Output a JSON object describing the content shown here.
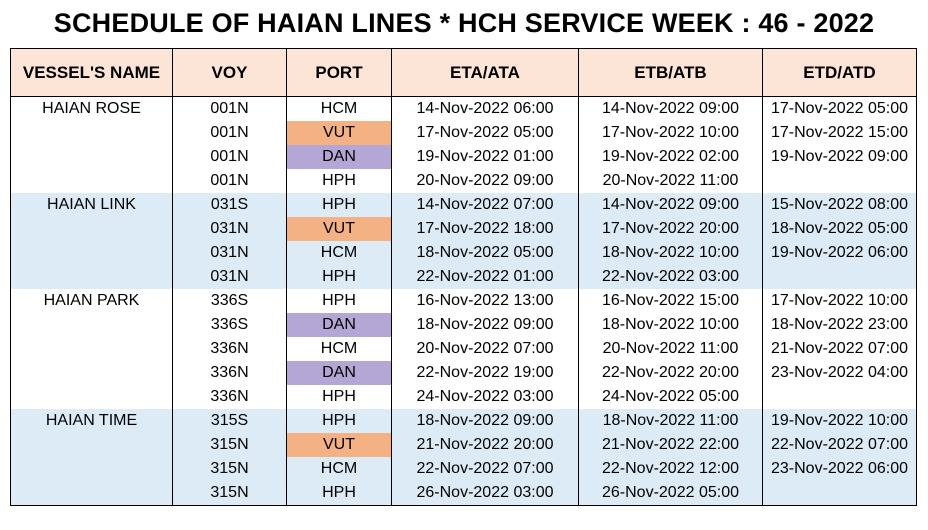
{
  "title": "SCHEDULE OF HAIAN LINES * HCH SERVICE WEEK : 46 - 2022",
  "headers": {
    "vessel": "VESSEL'S NAME",
    "voy": "VOY",
    "port": "PORT",
    "eta": "ETA/ATA",
    "etb": "ETB/ATB",
    "etd": "ETD/ATD"
  },
  "colors": {
    "header_bg": "#FCE4D6",
    "alt_row_bg": "#DDEBF7",
    "port_highlight_orange": "#F4B183",
    "port_highlight_purple": "#B4A7D6"
  },
  "rows": [
    {
      "vessel": "HAIAN ROSE",
      "voy": "001N",
      "port": "HCM",
      "eta": "14-Nov-2022 06:00",
      "etb": "14-Nov-2022 09:00",
      "etd": "17-Nov-2022 05:00",
      "highlight": ""
    },
    {
      "vessel": "",
      "voy": "001N",
      "port": "VUT",
      "eta": "17-Nov-2022 05:00",
      "etb": "17-Nov-2022 10:00",
      "etd": "17-Nov-2022 15:00",
      "highlight": "orange"
    },
    {
      "vessel": "",
      "voy": "001N",
      "port": "DAN",
      "eta": "19-Nov-2022 01:00",
      "etb": "19-Nov-2022 02:00",
      "etd": "19-Nov-2022 09:00",
      "highlight": "purple"
    },
    {
      "vessel": "",
      "voy": "001N",
      "port": "HPH",
      "eta": "20-Nov-2022 09:00",
      "etb": "20-Nov-2022 11:00",
      "etd": "",
      "highlight": ""
    },
    {
      "vessel": "HAIAN LINK",
      "voy": "031S",
      "port": "HPH",
      "eta": "14-Nov-2022 07:00",
      "etb": "14-Nov-2022 09:00",
      "etd": "15-Nov-2022 08:00",
      "highlight": ""
    },
    {
      "vessel": "",
      "voy": "031N",
      "port": "VUT",
      "eta": "17-Nov-2022 18:00",
      "etb": "17-Nov-2022 20:00",
      "etd": "18-Nov-2022 05:00",
      "highlight": "orange"
    },
    {
      "vessel": "",
      "voy": "031N",
      "port": "HCM",
      "eta": "18-Nov-2022 05:00",
      "etb": "18-Nov-2022 10:00",
      "etd": "19-Nov-2022 06:00",
      "highlight": ""
    },
    {
      "vessel": "",
      "voy": "031N",
      "port": "HPH",
      "eta": "22-Nov-2022 01:00",
      "etb": "22-Nov-2022 03:00",
      "etd": "",
      "highlight": ""
    },
    {
      "vessel": "HAIAN PARK",
      "voy": "336S",
      "port": "HPH",
      "eta": "16-Nov-2022 13:00",
      "etb": "16-Nov-2022 15:00",
      "etd": "17-Nov-2022 10:00",
      "highlight": ""
    },
    {
      "vessel": "",
      "voy": "336S",
      "port": "DAN",
      "eta": "18-Nov-2022 09:00",
      "etb": "18-Nov-2022 10:00",
      "etd": "18-Nov-2022 23:00",
      "highlight": "purple"
    },
    {
      "vessel": "",
      "voy": "336N",
      "port": "HCM",
      "eta": "20-Nov-2022 07:00",
      "etb": "20-Nov-2022 11:00",
      "etd": "21-Nov-2022 07:00",
      "highlight": ""
    },
    {
      "vessel": "",
      "voy": "336N",
      "port": "DAN",
      "eta": "22-Nov-2022 19:00",
      "etb": "22-Nov-2022 20:00",
      "etd": "23-Nov-2022 04:00",
      "highlight": "purple"
    },
    {
      "vessel": "",
      "voy": "336N",
      "port": "HPH",
      "eta": "24-Nov-2022 03:00",
      "etb": "24-Nov-2022 05:00",
      "etd": "",
      "highlight": ""
    },
    {
      "vessel": "HAIAN TIME",
      "voy": "315S",
      "port": "HPH",
      "eta": "18-Nov-2022 09:00",
      "etb": "18-Nov-2022 11:00",
      "etd": "19-Nov-2022 10:00",
      "highlight": ""
    },
    {
      "vessel": "",
      "voy": "315N",
      "port": "VUT",
      "eta": "21-Nov-2022 20:00",
      "etb": "21-Nov-2022 22:00",
      "etd": "22-Nov-2022 07:00",
      "highlight": "orange"
    },
    {
      "vessel": "",
      "voy": "315N",
      "port": "HCM",
      "eta": "22-Nov-2022 07:00",
      "etb": "22-Nov-2022 12:00",
      "etd": "23-Nov-2022 06:00",
      "highlight": ""
    },
    {
      "vessel": "",
      "voy": "315N",
      "port": "HPH",
      "eta": "26-Nov-2022 03:00",
      "etb": "26-Nov-2022 05:00",
      "etd": "",
      "highlight": ""
    }
  ]
}
